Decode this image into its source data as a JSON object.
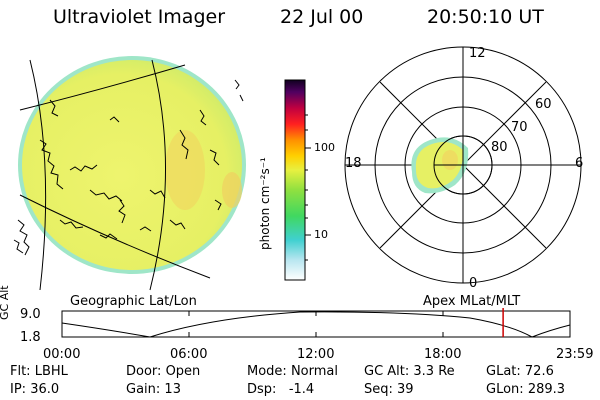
{
  "header": {
    "title": "Ultraviolet Imager",
    "date": "22 Jul 00",
    "time": "20:50:10 UT"
  },
  "panels": {
    "geo_label": "Geographic Lat/Lon",
    "apex_label": "Apex MLat/MLT"
  },
  "colorbar": {
    "unit_label": "photon cm⁻²s⁻¹",
    "ticks": [
      "100",
      "10"
    ]
  },
  "polar_plot": {
    "mlt_labels": [
      "12",
      "18",
      "6",
      "0"
    ],
    "lat_labels": [
      "60",
      "70",
      "80"
    ]
  },
  "altitude_strip": {
    "axis_label": "GC Alt",
    "y_max": "9.0",
    "y_min": "1.8",
    "time_ticks": [
      "00:00",
      "06:00",
      "12:00",
      "18:00",
      "23:59"
    ],
    "marker_time_hours": 20.84
  },
  "info": {
    "row1": [
      {
        "label": "Flt:",
        "value": "LBHL"
      },
      {
        "label": "Door:",
        "value": "Open"
      },
      {
        "label": "Mode:",
        "value": "Normal"
      },
      {
        "label": "GC Alt:",
        "value": "3.3 Re"
      },
      {
        "label": "GLat:",
        "value": "72.6"
      }
    ],
    "row2": [
      {
        "label": "IP:",
        "value": "36.0"
      },
      {
        "label": "Gain:",
        "value": "13"
      },
      {
        "label": "Dsp:",
        "value": "-1.4"
      },
      {
        "label": "Seq:",
        "value": "39"
      },
      {
        "label": "GLon:",
        "value": "289.3"
      }
    ]
  },
  "colors": {
    "disk_fill": "#e8f26a",
    "disk_edge": "#8fe0c0",
    "marker": "#cc0000"
  }
}
